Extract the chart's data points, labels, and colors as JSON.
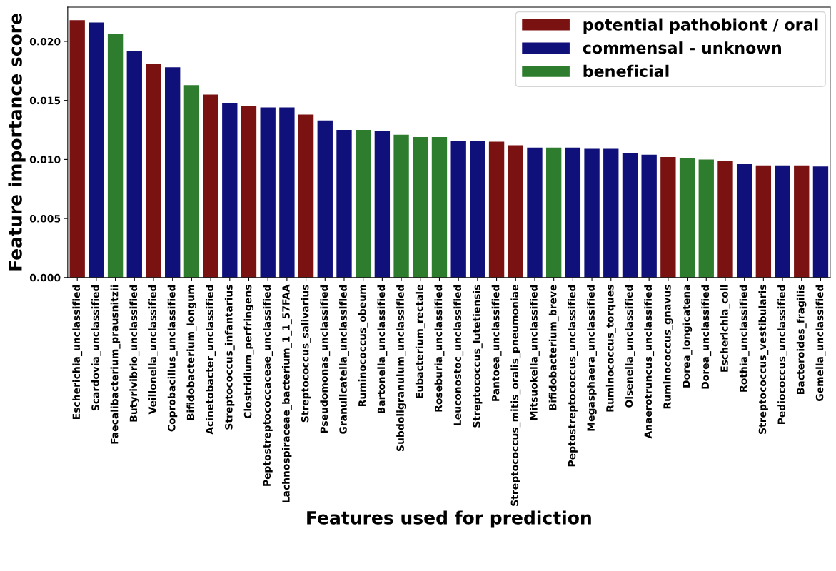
{
  "chart_data": {
    "type": "bar",
    "stacked": true,
    "xlabel": "Features used for prediction",
    "ylabel": "Feature importance score",
    "categories": [
      "Escherichia_unclassified",
      "Scardovia_unclassified",
      "Faecalibacterium_prausnitzii",
      "Butyrivibrio_unclassified",
      "Veillonella_unclassified",
      "Coprobacillus_unclassified",
      "Bifidobacterium_longum",
      "Acinetobacter_unclassified",
      "Streptococcus_infantarius",
      "Clostridium_perfringens",
      "Peptostreptococcaceae_unclassified",
      "Lachnospiraceae_bacterium_1_1_57FAA",
      "Streptococcus_salivarius",
      "Pseudomonas_unclassified",
      "Granulicatella_unclassified",
      "Ruminococcus_obeum",
      "Bartonella_unclassified",
      "Subdoligranulum_unclassified",
      "Eubacterium_rectale",
      "Roseburia_unclassified",
      "Leuconostoc_unclassified",
      "Streptococcus_lutetiensis",
      "Pantoea_unclassified",
      "Streptococcus_mitis_oralis_pneumoniae",
      "Mitsuokella_unclassified",
      "Bifidobacterium_breve",
      "Peptostreptococcus_unclassified",
      "Megasphaera_unclassified",
      "Ruminococcus_torques",
      "Olsenella_unclassified",
      "Anaerotruncus_unclassified",
      "Ruminococcus_gnavus",
      "Dorea_longicatena",
      "Dorea_unclassified",
      "Escherichia_coli",
      "Rothia_unclassified",
      "Streptococcus_vestibularis",
      "Pediococcus_unclassified",
      "Bacteroides_fragilis",
      "Gemella_unclassified"
    ],
    "series": [
      {
        "name": "potential pathobiont / oral",
        "color": "#7a1212",
        "values": [
          0.0218,
          null,
          null,
          null,
          0.0181,
          null,
          null,
          0.0155,
          null,
          0.0145,
          null,
          null,
          0.0138,
          null,
          null,
          null,
          null,
          null,
          null,
          null,
          null,
          null,
          0.0115,
          0.0112,
          null,
          null,
          null,
          null,
          null,
          null,
          null,
          0.0102,
          null,
          null,
          0.0099,
          null,
          0.0095,
          null,
          0.0095,
          null
        ]
      },
      {
        "name": "commensal - unknown",
        "color": "#10107a",
        "values": [
          null,
          0.0216,
          null,
          0.0192,
          null,
          0.0178,
          null,
          null,
          0.0148,
          null,
          0.0144,
          0.0144,
          null,
          0.0133,
          0.0125,
          null,
          0.0124,
          null,
          null,
          null,
          0.0116,
          0.0116,
          null,
          null,
          0.011,
          null,
          0.011,
          0.0109,
          0.0109,
          0.0105,
          0.0104,
          null,
          null,
          null,
          null,
          0.0096,
          null,
          0.0095,
          null,
          0.0094
        ]
      },
      {
        "name": "beneficial",
        "color": "#2e7d2e",
        "values": [
          null,
          null,
          0.0206,
          null,
          null,
          null,
          0.0163,
          null,
          null,
          null,
          null,
          null,
          null,
          null,
          null,
          0.0125,
          null,
          0.0121,
          0.0119,
          0.0119,
          null,
          null,
          null,
          null,
          null,
          0.011,
          null,
          null,
          null,
          null,
          null,
          null,
          0.0101,
          0.01,
          null,
          null,
          null,
          null,
          null,
          null
        ]
      }
    ],
    "ylim": [
      0,
      0.0229
    ],
    "yticks": [
      {
        "value": 0,
        "label": "0.000"
      },
      {
        "value": 0.005,
        "label": "0.005"
      },
      {
        "value": 0.01,
        "label": "0.010"
      },
      {
        "value": 0.015,
        "label": "0.015"
      },
      {
        "value": 0.02,
        "label": "0.020"
      }
    ],
    "legend": "top right"
  }
}
